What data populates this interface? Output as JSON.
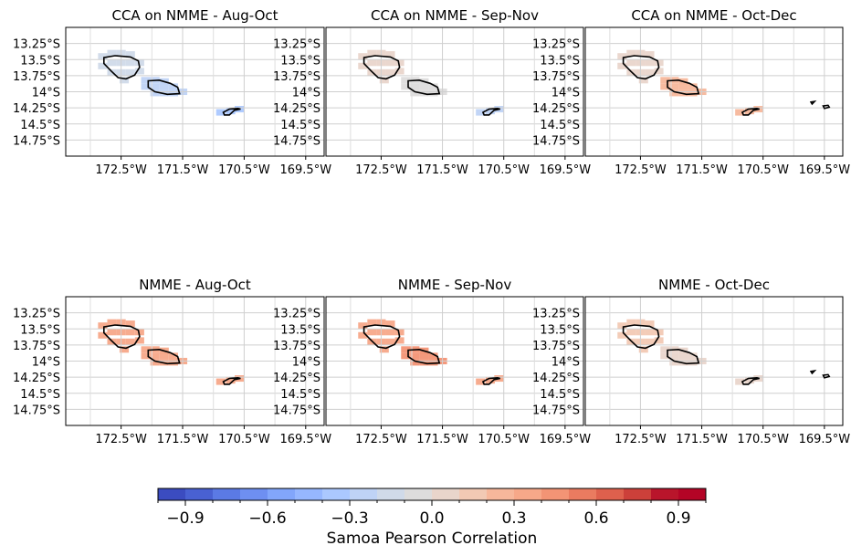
{
  "chart_data": {
    "type": "heatmap",
    "figure_kind": "map-panels",
    "grid_lines": true,
    "lon_ticks": [
      "172.5°W",
      "171.5°W",
      "170.5°W",
      "169.5°W"
    ],
    "lon_tick_values": [
      -172.5,
      -171.5,
      -170.5,
      -169.5
    ],
    "lat_ticks": [
      "13.25°S",
      "13.5°S",
      "13.75°S",
      "14°S",
      "14.25°S",
      "14.5°S",
      "14.75°S"
    ],
    "lat_tick_values": [
      -13.25,
      -13.5,
      -13.75,
      -14.0,
      -14.25,
      -14.5,
      -14.75
    ],
    "lon_range": [
      -173.4,
      -169.2
    ],
    "lat_range": [
      -13.0,
      -15.0
    ],
    "colorbar": {
      "label": "Samoa Pearson Correlation",
      "range": [
        -1.0,
        1.0
      ],
      "ticks": [
        -0.9,
        -0.6,
        -0.3,
        0.0,
        0.3,
        0.6,
        0.9
      ],
      "tick_labels": [
        "−0.9",
        "−0.6",
        "−0.3",
        "0.0",
        "0.3",
        "0.6",
        "0.9"
      ],
      "levels": 20,
      "colors": [
        "#3b4cc0",
        "#4961d2",
        "#5b7ae5",
        "#6e8ff1",
        "#82a6fb",
        "#96b7ff",
        "#abc8ff",
        "#bfd3f6",
        "#d0dae9",
        "#dddcdc",
        "#e9d5cb",
        "#f2c9b4",
        "#f7b79b",
        "#f7a889",
        "#f39475",
        "#ea7b60",
        "#de604d",
        "#cc403a",
        "#b9152b",
        "#b40426"
      ],
      "placement": "bottom"
    },
    "panels": [
      {
        "title": "CCA on NMME - Aug-Oct",
        "upolu_value": -0.22,
        "savaii_value": -0.18,
        "tutuila_value": -0.32,
        "manua_value": null
      },
      {
        "title": "CCA on NMME - Sep-Nov",
        "upolu_value": -0.05,
        "savaii_value": 0.08,
        "tutuila_value": -0.28,
        "manua_value": null
      },
      {
        "title": "CCA on NMME - Oct-Dec",
        "upolu_value": 0.22,
        "savaii_value": 0.08,
        "tutuila_value": 0.25,
        "manua_value": null
      },
      {
        "title": "NMME - Aug-Oct",
        "upolu_value": 0.35,
        "savaii_value": 0.3,
        "tutuila_value": 0.38,
        "manua_value": null
      },
      {
        "title": "NMME - Sep-Nov",
        "upolu_value": 0.42,
        "savaii_value": 0.32,
        "tutuila_value": 0.38,
        "manua_value": null
      },
      {
        "title": "NMME - Oct-Dec",
        "upolu_value": 0.06,
        "savaii_value": 0.1,
        "tutuila_value": 0.05,
        "manua_value": null
      }
    ]
  }
}
